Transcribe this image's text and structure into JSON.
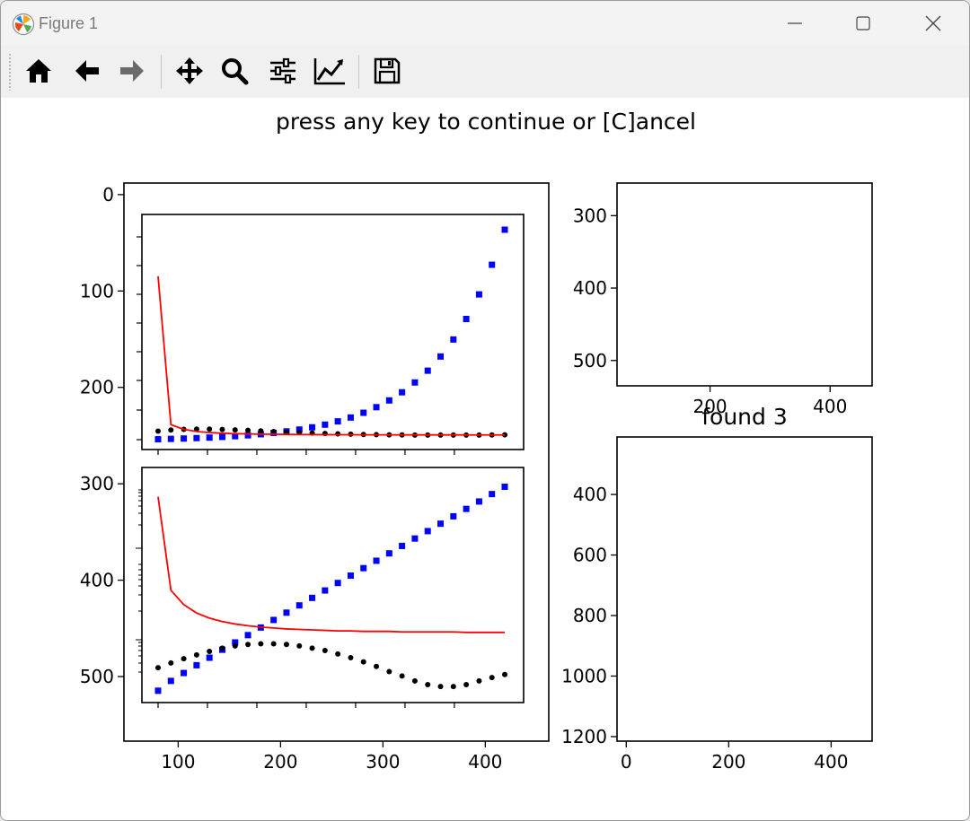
{
  "window": {
    "title": "Figure 1",
    "controls": [
      "minimize",
      "maximize",
      "close"
    ]
  },
  "toolbar": {
    "buttons": [
      {
        "name": "home",
        "icon": "home-icon"
      },
      {
        "name": "back",
        "icon": "arrow-left-icon"
      },
      {
        "name": "forward",
        "icon": "arrow-right-icon"
      },
      {
        "name": "pan",
        "icon": "move-icon"
      },
      {
        "name": "zoom",
        "icon": "magnifier-icon"
      },
      {
        "name": "configure-subplots",
        "icon": "sliders-icon"
      },
      {
        "name": "edit-axes",
        "icon": "line-chart-icon"
      },
      {
        "name": "save",
        "icon": "floppy-icon"
      }
    ]
  },
  "figure": {
    "title": "press any key to continue or [C]ancel",
    "overlap_title": "found 3"
  },
  "chart_data": [
    {
      "id": "outer-left",
      "type": "line",
      "xlim": [
        47,
        462
      ],
      "ylim": [
        567,
        -12
      ],
      "xticks": [
        100,
        200,
        300,
        400
      ],
      "yticks": [
        0,
        100,
        200,
        300,
        400,
        500
      ],
      "series": []
    },
    {
      "id": "inset-top",
      "type": "scatter",
      "x": [
        80,
        93,
        106,
        119,
        132,
        145,
        158,
        171,
        184,
        197,
        210,
        223,
        236,
        249,
        262,
        275,
        288,
        301,
        314,
        327,
        340,
        353,
        366,
        379,
        392,
        405,
        418,
        431
      ],
      "series": [
        {
          "style": "blue-squares",
          "color": "#0000ff",
          "values": [
            1.8,
            2.3,
            2.8,
            3.4,
            4.1,
            5.0,
            6.0,
            7.2,
            8.7,
            10.5,
            12.6,
            15.1,
            18.2,
            21.9,
            26.4,
            31.7,
            38.2,
            45.9,
            55.2,
            66.4,
            79.9,
            96.1,
            115.6,
            139.0,
            167.2,
            201.0,
            241.8,
            290.0
          ]
        },
        {
          "style": "black-dots",
          "color": "#000000",
          "values": [
            13.0,
            14.5,
            15.4,
            15.8,
            15.7,
            15.3,
            14.7,
            14.0,
            13.2,
            12.4,
            11.6,
            10.9,
            10.3,
            9.7,
            9.2,
            8.8,
            8.4,
            8.1,
            7.9,
            7.7,
            7.6,
            7.5,
            7.5,
            7.5,
            7.5,
            7.6,
            7.7,
            7.8
          ]
        },
        {
          "style": "red-line",
          "color": "#ff0000",
          "values": [
            226,
            22.0,
            15.4,
            12.5,
            11.0,
            10.1,
            9.5,
            9.1,
            8.8,
            8.6,
            8.4,
            8.3,
            8.2,
            8.1,
            8.0,
            8.0,
            7.9,
            7.9,
            7.9,
            7.8,
            7.8,
            7.8,
            7.8,
            7.8,
            7.7,
            7.7,
            7.7,
            7.7
          ]
        }
      ]
    },
    {
      "id": "inset-bottom",
      "type": "scatter",
      "yscale": "log",
      "x": [
        80,
        93,
        106,
        119,
        132,
        145,
        158,
        171,
        184,
        197,
        210,
        223,
        236,
        249,
        262,
        275,
        288,
        301,
        314,
        327,
        340,
        353,
        366,
        379,
        392,
        405,
        418,
        431
      ],
      "series": [
        {
          "style": "blue-squares",
          "color": "#0000ff",
          "values": [
            1.8,
            2.3,
            2.8,
            3.4,
            4.1,
            5.0,
            6.0,
            7.2,
            8.7,
            10.5,
            12.6,
            15.1,
            18.2,
            21.9,
            26.4,
            31.7,
            38.2,
            45.9,
            55.2,
            66.4,
            79.9,
            96.1,
            115.6,
            139.0,
            167.2,
            201.0,
            241.8,
            290.0
          ]
        },
        {
          "style": "black-dots",
          "color": "#000000",
          "values": [
            3.2,
            3.6,
            4.0,
            4.4,
            4.8,
            5.2,
            5.5,
            5.7,
            5.8,
            5.8,
            5.7,
            5.5,
            5.2,
            4.9,
            4.5,
            4.1,
            3.7,
            3.3,
            2.9,
            2.6,
            2.3,
            2.1,
            2.0,
            2.0,
            2.1,
            2.3,
            2.5,
            2.7
          ]
        },
        {
          "style": "red-line",
          "color": "#ff0000",
          "values": [
            226,
            22.0,
            15.4,
            12.5,
            11.0,
            10.1,
            9.5,
            9.1,
            8.8,
            8.6,
            8.4,
            8.3,
            8.2,
            8.1,
            8.0,
            8.0,
            7.9,
            7.9,
            7.9,
            7.8,
            7.8,
            7.8,
            7.8,
            7.8,
            7.7,
            7.7,
            7.7,
            7.7
          ]
        }
      ]
    },
    {
      "id": "right-top",
      "type": "scatter",
      "xlim": [
        45,
        470
      ],
      "ylim": [
        535,
        255
      ],
      "xticks": [
        200,
        400
      ],
      "yticks": [
        300,
        400,
        500
      ],
      "series": []
    },
    {
      "id": "right-bottom",
      "type": "scatter",
      "xlim": [
        -18,
        480
      ],
      "ylim": [
        1215,
        210
      ],
      "xticks": [
        0,
        200,
        400
      ],
      "yticks": [
        400,
        600,
        800,
        1000,
        1200
      ],
      "series": []
    }
  ]
}
